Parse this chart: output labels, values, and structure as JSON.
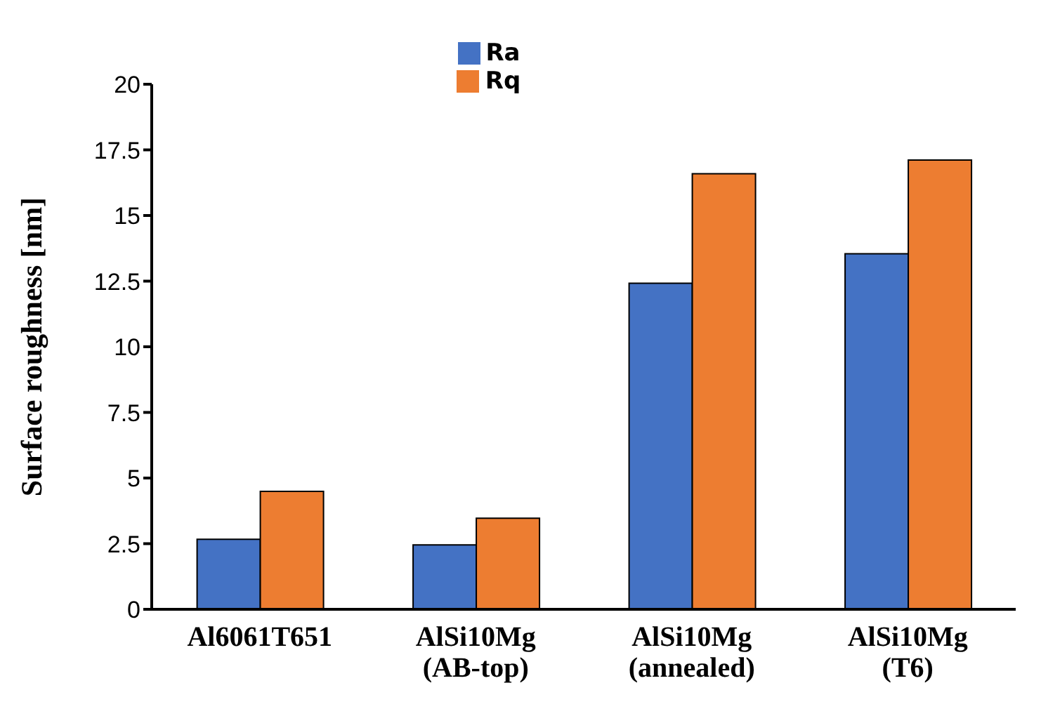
{
  "chart_data": {
    "type": "bar",
    "ylabel": "Surface roughness [nm]",
    "categories": [
      "Al6061T651",
      "AlSi10Mg\n(AB-top)",
      "AlSi10Mg\n(annealed)",
      "AlSi10Mg\n(T6)"
    ],
    "series": [
      {
        "name": "Ra",
        "color": "#4472c4",
        "values": [
          2.67,
          2.45,
          12.42,
          13.54
        ]
      },
      {
        "name": "Rq",
        "color": "#ed7d31",
        "values": [
          4.49,
          3.47,
          16.59,
          17.11
        ]
      }
    ],
    "ylim": [
      0,
      20
    ],
    "yticks": [
      0,
      2.5,
      5,
      7.5,
      10,
      12.5,
      15,
      17.5,
      20
    ],
    "grid": false,
    "legend": "top"
  }
}
